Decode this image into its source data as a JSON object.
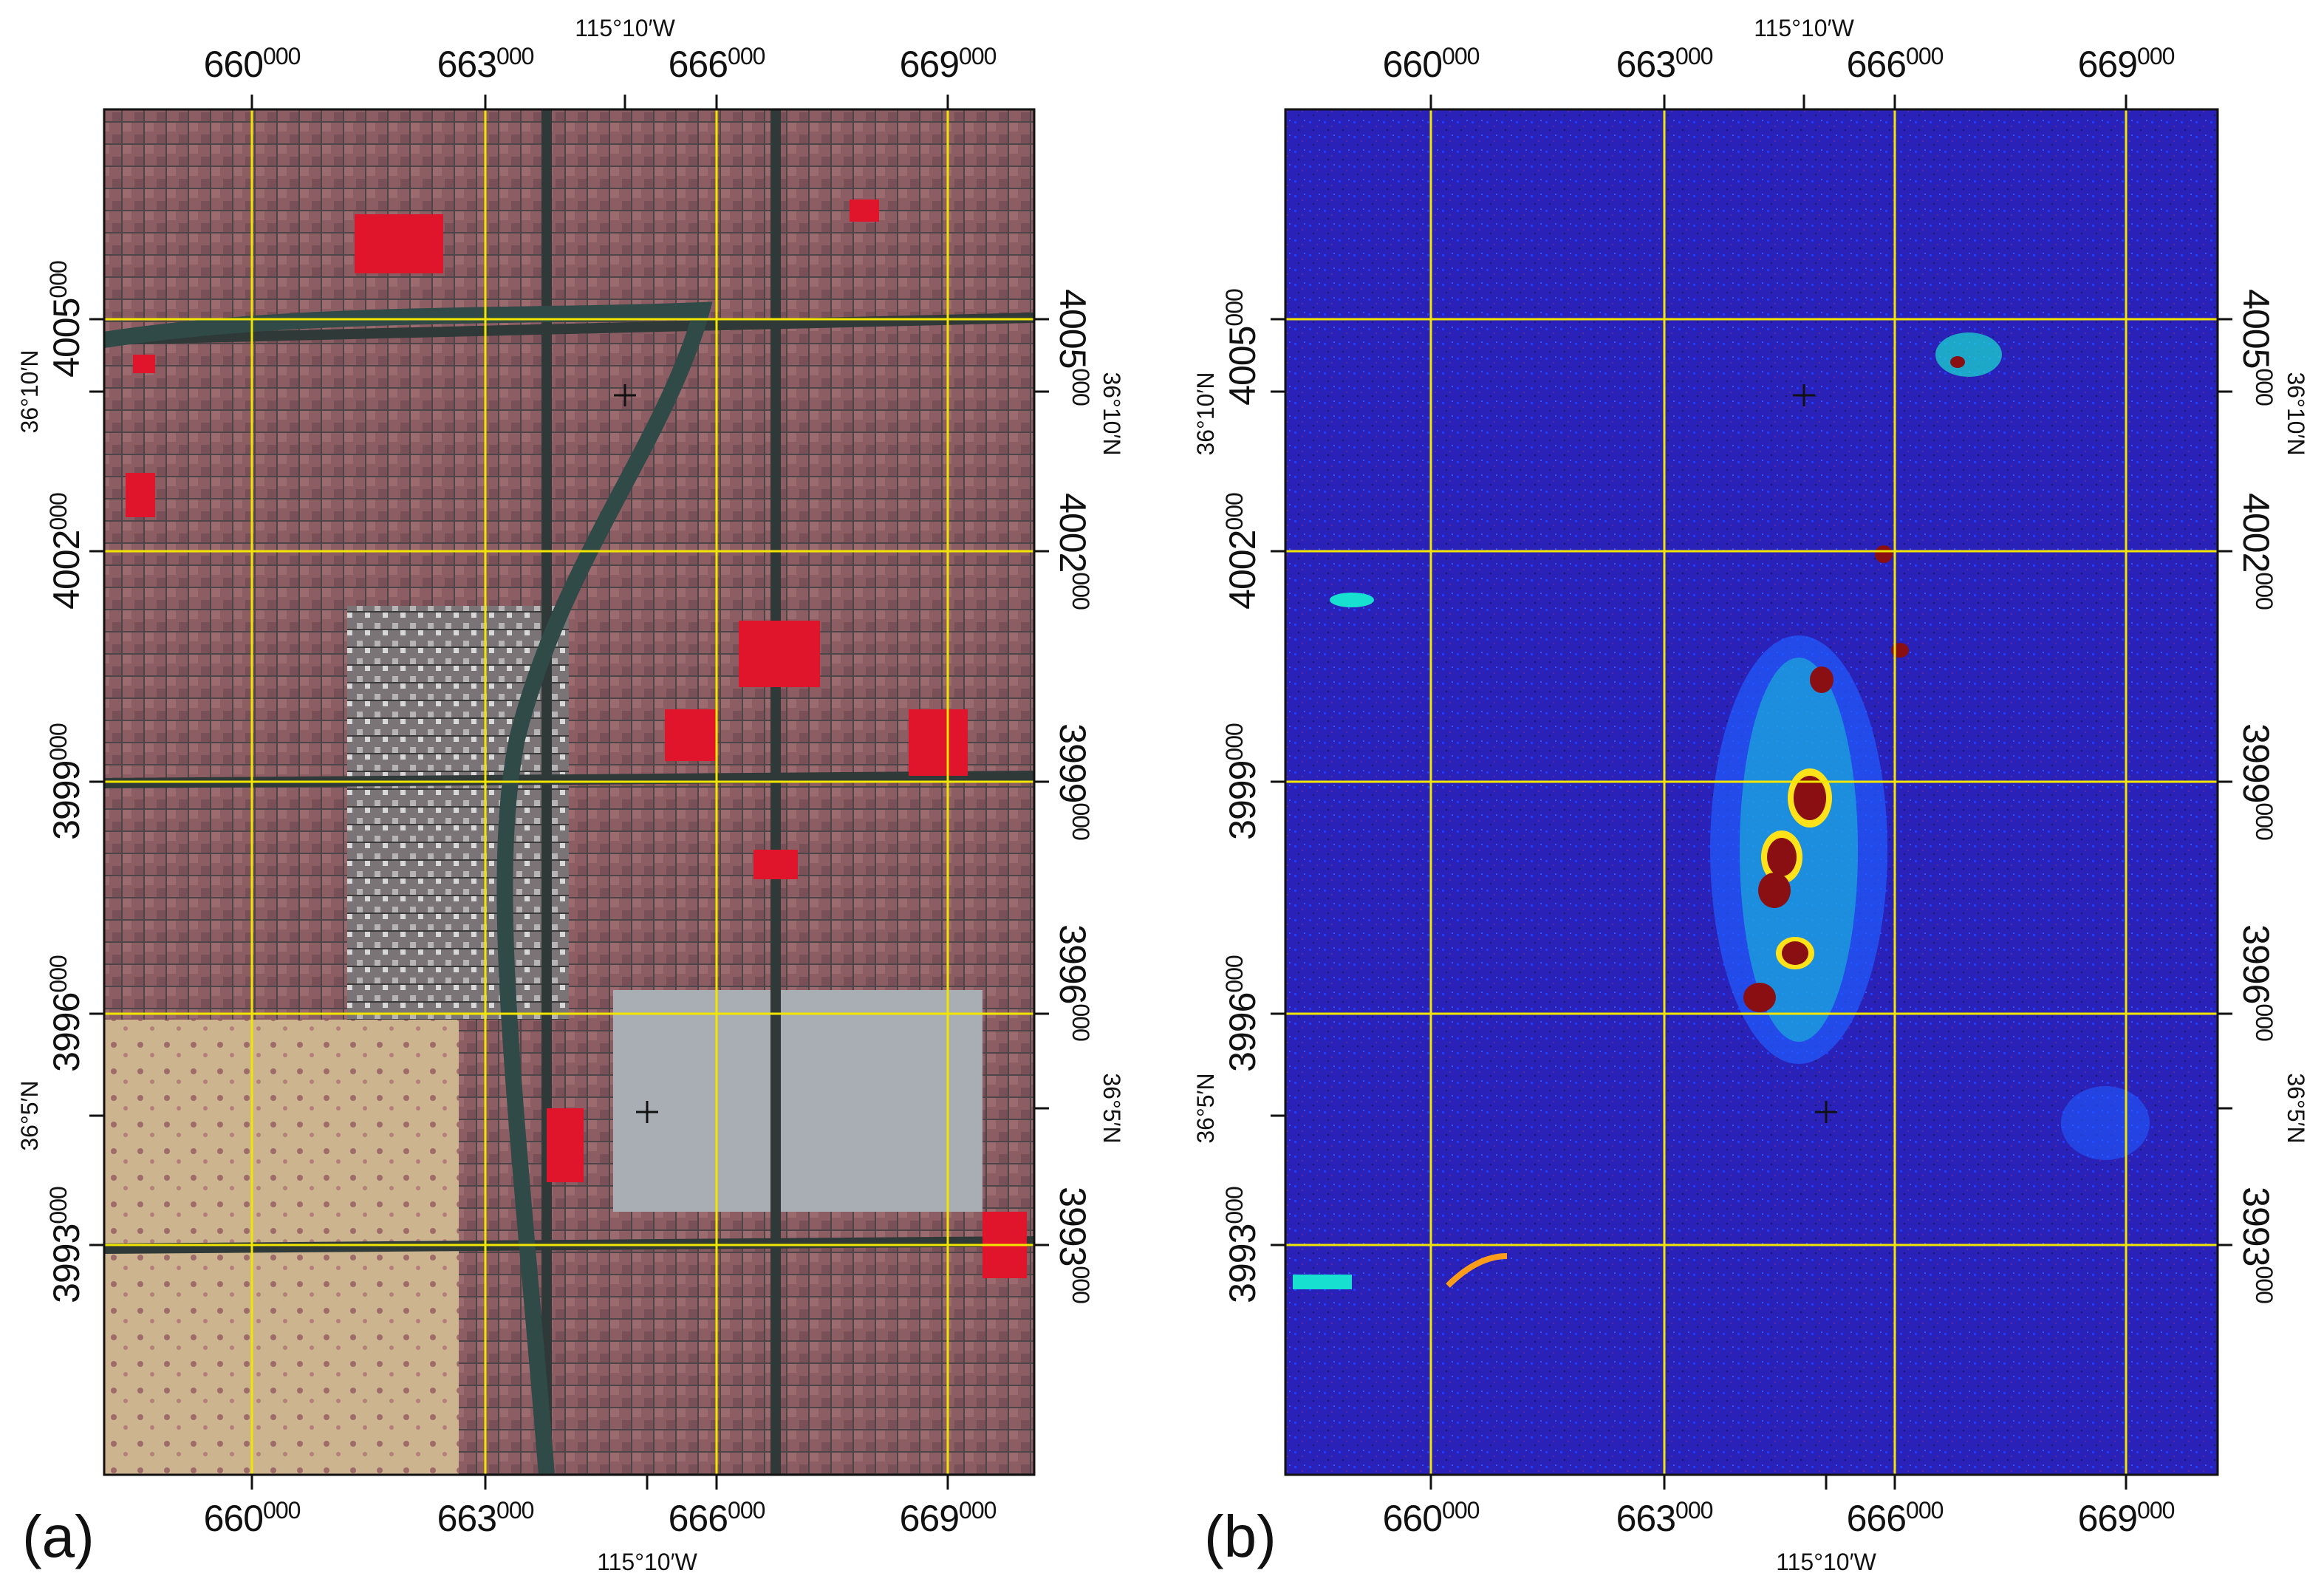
{
  "figure": {
    "panels": [
      {
        "id": "a",
        "label": "(a)",
        "type": "false-color-composite",
        "top_easting_labels": [
          [
            "66",
            "0",
            "000"
          ],
          [
            "66",
            "3",
            "000"
          ],
          [
            "66",
            "6",
            "000"
          ],
          [
            "66",
            "9",
            "000"
          ]
        ],
        "bottom_easting_labels": [
          [
            "66",
            "0",
            "000"
          ],
          [
            "66",
            "3",
            "000"
          ],
          [
            "66",
            "6",
            "000"
          ],
          [
            "66",
            "9",
            "000"
          ]
        ],
        "left_northing_labels": [
          [
            "40",
            "05",
            "000"
          ],
          [
            "40",
            "02",
            "000"
          ],
          [
            "39",
            "99",
            "000"
          ],
          [
            "39",
            "96",
            "000"
          ],
          [
            "39",
            "93",
            "000"
          ]
        ],
        "right_northing_labels": [
          [
            "40",
            "05",
            "000"
          ],
          [
            "40",
            "02",
            "000"
          ],
          [
            "39",
            "99",
            "000"
          ],
          [
            "39",
            "96",
            "000"
          ],
          [
            "39",
            "93",
            "000"
          ]
        ],
        "top_longitude": "115°10′W",
        "bottom_longitude": "115°10′W",
        "left_latitudes": [
          "36°10′N",
          "36°5′N"
        ],
        "right_latitudes": [
          "36°10′N",
          "36°5′N"
        ]
      },
      {
        "id": "b",
        "label": "(b)",
        "type": "classified-index-map",
        "top_easting_labels": [
          [
            "66",
            "0",
            "000"
          ],
          [
            "66",
            "3",
            "000"
          ],
          [
            "66",
            "6",
            "000"
          ],
          [
            "66",
            "9",
            "000"
          ]
        ],
        "bottom_easting_labels": [
          [
            "66",
            "0",
            "000"
          ],
          [
            "66",
            "3",
            "000"
          ],
          [
            "66",
            "6",
            "000"
          ],
          [
            "66",
            "9",
            "000"
          ]
        ],
        "left_northing_labels": [
          [
            "40",
            "05",
            "000"
          ],
          [
            "40",
            "02",
            "000"
          ],
          [
            "39",
            "99",
            "000"
          ],
          [
            "39",
            "96",
            "000"
          ],
          [
            "39",
            "93",
            "000"
          ]
        ],
        "right_northing_labels": [
          [
            "40",
            "05",
            "000"
          ],
          [
            "40",
            "02",
            "000"
          ],
          [
            "39",
            "99",
            "000"
          ],
          [
            "39",
            "96",
            "000"
          ],
          [
            "39",
            "93",
            "000"
          ]
        ],
        "top_longitude": "115°10′W",
        "bottom_longitude": "115°10′W",
        "left_latitudes": [
          "36°10′N",
          "36°5′N"
        ],
        "right_latitudes": [
          "36°10′N",
          "36°5′N"
        ]
      }
    ],
    "colors": {
      "grid": "#f2e600",
      "urban_gray": "#6f6a6c",
      "vegetation_red": "#e0142a",
      "residential_mauve": "#8c5d63",
      "bare_tan": "#cbb48e",
      "water_teal": "#2f4a47",
      "airport_silver": "#a9aeb4",
      "index_background": "#2a22b8",
      "index_low": "#1f5cff",
      "index_mid": "#18e0d0",
      "index_high": "#ffe21a",
      "index_peak": "#8a0f12"
    }
  }
}
